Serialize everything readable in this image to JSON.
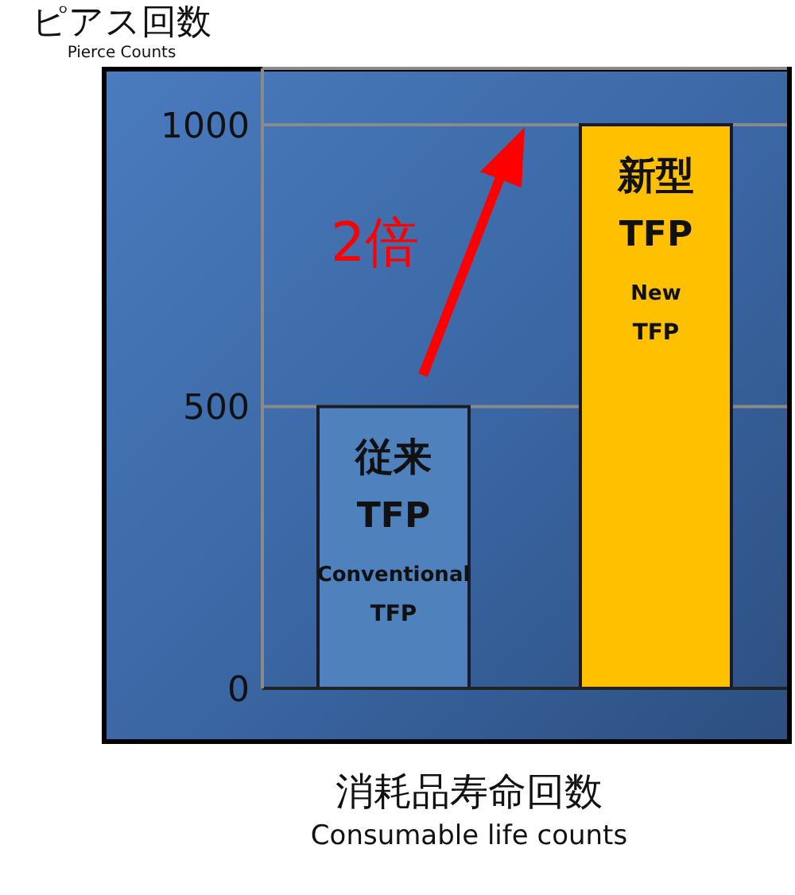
{
  "chart_data": {
    "type": "bar",
    "categories": [
      "従来\nTFP\nConventional\nTFP",
      "新型\nTFP\nNew\nTFP"
    ],
    "values": [
      500,
      1000
    ],
    "colors": [
      "#4f81bd",
      "#ffc000"
    ],
    "ylim": [
      0,
      1100
    ],
    "yticks": [
      0,
      500,
      1000
    ],
    "grid": "y",
    "tick_labels": "y",
    "ylabel": "ピアス回数\nPierce Counts",
    "xlabel": "消耗品寿命回数\nConsumable life counts",
    "annotations": [
      "2倍"
    ]
  }
}
